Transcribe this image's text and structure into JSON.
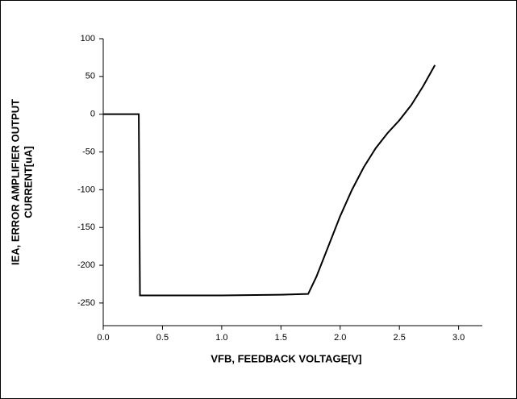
{
  "chart_data": {
    "type": "line",
    "x_label": "VFB, FEEDBACK VOLTAGE[V]",
    "y_label": [
      "IEA, ERROR AMPLIFIER OUTPUT",
      "CURRENT[uA]"
    ],
    "x": [
      0,
      0.3,
      0.31,
      1.0,
      1.5,
      1.73,
      1.8,
      1.9,
      2.0,
      2.1,
      2.2,
      2.3,
      2.4,
      2.5,
      2.6,
      2.7,
      2.8
    ],
    "series": [
      {
        "color": "#000000",
        "values": [
          0,
          0,
          -240,
          -240,
          -239,
          -238,
          -215,
          -175,
          -135,
          -100,
          -70,
          -45,
          -25,
          -8,
          12,
          37,
          65
        ]
      }
    ],
    "xlim": [
      0,
      3.2
    ],
    "xticks": [
      {
        "value": 0,
        "label": "0.0"
      },
      0.5,
      {
        "value": 1,
        "label": "1.0"
      },
      1.5,
      {
        "value": 2,
        "label": "2.0"
      },
      2.5,
      {
        "value": 3,
        "label": "3.0"
      }
    ],
    "ylim": [
      -280,
      100
    ],
    "yticks": [
      100,
      50,
      0,
      -50,
      -100,
      -150,
      -200,
      -250
    ]
  }
}
